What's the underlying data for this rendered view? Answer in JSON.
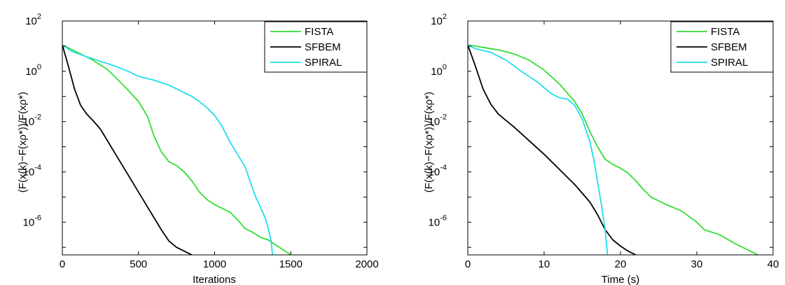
{
  "chart_data": [
    {
      "type": "line",
      "xlabel": "Iterations",
      "ylabel": "(F(x(k)−F(xρ*))/F(xρ*)",
      "xlim": [
        0,
        2000
      ],
      "ylim_log10": [
        -7.3,
        2
      ],
      "y_scale": "log",
      "xticks": [
        "0",
        "500",
        "1000",
        "1500",
        "2000"
      ],
      "yticks": [
        {
          "base": "10",
          "exp": "2",
          "log": 2
        },
        {
          "base": "10",
          "exp": "0",
          "log": 0
        },
        {
          "base": "10",
          "exp": "-2",
          "log": -2
        },
        {
          "base": "10",
          "exp": "-4",
          "log": -4
        },
        {
          "base": "10",
          "exp": "-6",
          "log": -6
        }
      ],
      "legend_position": "top-right",
      "series": [
        {
          "name": "FISTA",
          "color": "#33dd33",
          "points": [
            [
              0,
              1.05
            ],
            [
              100,
              0.75
            ],
            [
              200,
              0.45
            ],
            [
              300,
              0.05
            ],
            [
              400,
              -0.55
            ],
            [
              500,
              -1.2
            ],
            [
              560,
              -1.8
            ],
            [
              600,
              -2.55
            ],
            [
              650,
              -3.2
            ],
            [
              700,
              -3.6
            ],
            [
              750,
              -3.75
            ],
            [
              800,
              -4.0
            ],
            [
              850,
              -4.35
            ],
            [
              900,
              -4.8
            ],
            [
              950,
              -5.1
            ],
            [
              1000,
              -5.3
            ],
            [
              1050,
              -5.45
            ],
            [
              1100,
              -5.6
            ],
            [
              1150,
              -5.9
            ],
            [
              1200,
              -6.25
            ],
            [
              1250,
              -6.4
            ],
            [
              1300,
              -6.6
            ],
            [
              1350,
              -6.7
            ],
            [
              1400,
              -6.9
            ],
            [
              1450,
              -7.1
            ],
            [
              1500,
              -7.3
            ]
          ]
        },
        {
          "name": "SFBEM",
          "color": "#000000",
          "points": [
            [
              0,
              1.05
            ],
            [
              40,
              0.2
            ],
            [
              80,
              -0.7
            ],
            [
              120,
              -1.35
            ],
            [
              160,
              -1.7
            ],
            [
              200,
              -1.95
            ],
            [
              250,
              -2.3
            ],
            [
              300,
              -2.8
            ],
            [
              350,
              -3.3
            ],
            [
              400,
              -3.8
            ],
            [
              450,
              -4.3
            ],
            [
              500,
              -4.8
            ],
            [
              550,
              -5.3
            ],
            [
              600,
              -5.8
            ],
            [
              650,
              -6.3
            ],
            [
              700,
              -6.75
            ],
            [
              750,
              -7.0
            ],
            [
              800,
              -7.15
            ],
            [
              850,
              -7.3
            ]
          ]
        },
        {
          "name": "SPIRAL",
          "color": "#22ddee",
          "points": [
            [
              0,
              1.05
            ],
            [
              60,
              0.8
            ],
            [
              150,
              0.6
            ],
            [
              250,
              0.4
            ],
            [
              350,
              0.2
            ],
            [
              450,
              -0.05
            ],
            [
              500,
              -0.2
            ],
            [
              600,
              -0.35
            ],
            [
              700,
              -0.55
            ],
            [
              800,
              -0.85
            ],
            [
              850,
              -1.0
            ],
            [
              900,
              -1.2
            ],
            [
              950,
              -1.45
            ],
            [
              1000,
              -1.75
            ],
            [
              1050,
              -2.2
            ],
            [
              1100,
              -2.8
            ],
            [
              1150,
              -3.3
            ],
            [
              1200,
              -3.8
            ],
            [
              1240,
              -4.5
            ],
            [
              1270,
              -5.0
            ],
            [
              1300,
              -5.4
            ],
            [
              1330,
              -5.8
            ],
            [
              1350,
              -6.2
            ],
            [
              1370,
              -6.7
            ],
            [
              1380,
              -7.3
            ]
          ]
        }
      ]
    },
    {
      "type": "line",
      "xlabel": "Time (s)",
      "ylabel": "(F(x(k)−F(xρ*))/F(xρ*)",
      "xlim": [
        0,
        40
      ],
      "ylim_log10": [
        -7.3,
        2
      ],
      "y_scale": "log",
      "xticks": [
        "0",
        "10",
        "20",
        "30",
        "40"
      ],
      "yticks": [
        {
          "base": "10",
          "exp": "2",
          "log": 2
        },
        {
          "base": "10",
          "exp": "0",
          "log": 0
        },
        {
          "base": "10",
          "exp": "-2",
          "log": -2
        },
        {
          "base": "10",
          "exp": "-4",
          "log": -4
        },
        {
          "base": "10",
          "exp": "-6",
          "log": -6
        }
      ],
      "legend_position": "top-right",
      "series": [
        {
          "name": "FISTA",
          "color": "#33dd33",
          "points": [
            [
              0,
              1.05
            ],
            [
              2,
              0.95
            ],
            [
              4,
              0.85
            ],
            [
              6,
              0.7
            ],
            [
              8,
              0.45
            ],
            [
              10,
              0.05
            ],
            [
              12,
              -0.5
            ],
            [
              14,
              -1.2
            ],
            [
              15,
              -1.7
            ],
            [
              16,
              -2.4
            ],
            [
              17,
              -3.0
            ],
            [
              18,
              -3.5
            ],
            [
              19,
              -3.7
            ],
            [
              20,
              -3.85
            ],
            [
              21,
              -4.05
            ],
            [
              22,
              -4.35
            ],
            [
              23,
              -4.7
            ],
            [
              24,
              -5.0
            ],
            [
              26,
              -5.3
            ],
            [
              28,
              -5.55
            ],
            [
              30,
              -6.0
            ],
            [
              31,
              -6.3
            ],
            [
              33,
              -6.5
            ],
            [
              35,
              -6.85
            ],
            [
              37,
              -7.15
            ],
            [
              38,
              -7.3
            ]
          ]
        },
        {
          "name": "SFBEM",
          "color": "#000000",
          "points": [
            [
              0,
              1.05
            ],
            [
              1,
              0.2
            ],
            [
              2,
              -0.7
            ],
            [
              3,
              -1.3
            ],
            [
              4,
              -1.7
            ],
            [
              5,
              -1.95
            ],
            [
              6,
              -2.2
            ],
            [
              8,
              -2.75
            ],
            [
              10,
              -3.3
            ],
            [
              12,
              -3.9
            ],
            [
              14,
              -4.5
            ],
            [
              16,
              -5.2
            ],
            [
              17,
              -5.7
            ],
            [
              18,
              -6.3
            ],
            [
              19,
              -6.7
            ],
            [
              20,
              -6.95
            ],
            [
              21,
              -7.15
            ],
            [
              22,
              -7.3
            ]
          ]
        },
        {
          "name": "SPIRAL",
          "color": "#22ddee",
          "points": [
            [
              0,
              1.05
            ],
            [
              1,
              0.9
            ],
            [
              3,
              0.75
            ],
            [
              5,
              0.45
            ],
            [
              7,
              0.0
            ],
            [
              9,
              -0.4
            ],
            [
              10,
              -0.65
            ],
            [
              11,
              -0.9
            ],
            [
              12,
              -1.05
            ],
            [
              13,
              -1.1
            ],
            [
              14,
              -1.35
            ],
            [
              15,
              -1.9
            ],
            [
              16,
              -2.8
            ],
            [
              16.5,
              -3.5
            ],
            [
              17,
              -4.4
            ],
            [
              17.5,
              -5.3
            ],
            [
              18,
              -6.3
            ],
            [
              18.3,
              -7.3
            ]
          ]
        }
      ]
    }
  ]
}
